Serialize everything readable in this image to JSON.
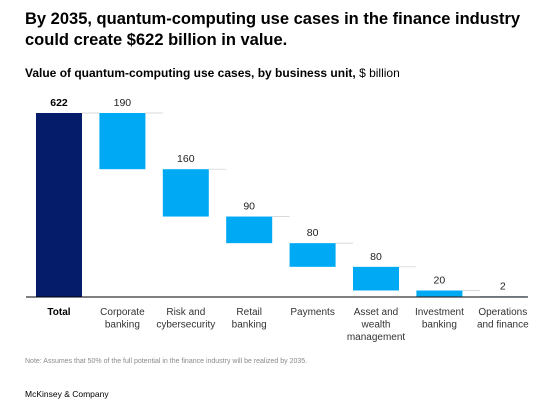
{
  "header": {
    "title": "By 2035, quantum-computing use cases in the finance industry could create $622 billion in value.",
    "subtitle_bold": "Value of quantum-computing use cases, by business unit,",
    "subtitle_unit": " $ billion"
  },
  "chart_data": {
    "type": "bar",
    "subtype": "waterfall",
    "title": "Value of quantum-computing use cases, by business unit, $ billion",
    "categories": [
      [
        "Total"
      ],
      [
        "Corporate",
        "banking"
      ],
      [
        "Risk and",
        "cybersecurity"
      ],
      [
        "Retail",
        "banking"
      ],
      [
        "Payments"
      ],
      [
        "Asset and",
        "wealth",
        "management"
      ],
      [
        "Investment",
        "banking"
      ],
      [
        "Operations",
        "and finance"
      ]
    ],
    "values": [
      622,
      190,
      160,
      90,
      80,
      80,
      20,
      2
    ],
    "value_labels": [
      "622",
      "190",
      "160",
      "90",
      "80",
      "80",
      "20",
      "2"
    ],
    "total_index": 0,
    "colors": {
      "total": "#051c6b",
      "component": "#00a9f4",
      "axis": "#000000",
      "connector": "#cccccc"
    },
    "ylim": [
      0,
      622
    ],
    "grid": false,
    "legend": "none"
  },
  "footer": {
    "note": "Note: Assumes that 50% of the full potential in the finance industry will be realized by 2035.",
    "source": "McKinsey & Company"
  }
}
